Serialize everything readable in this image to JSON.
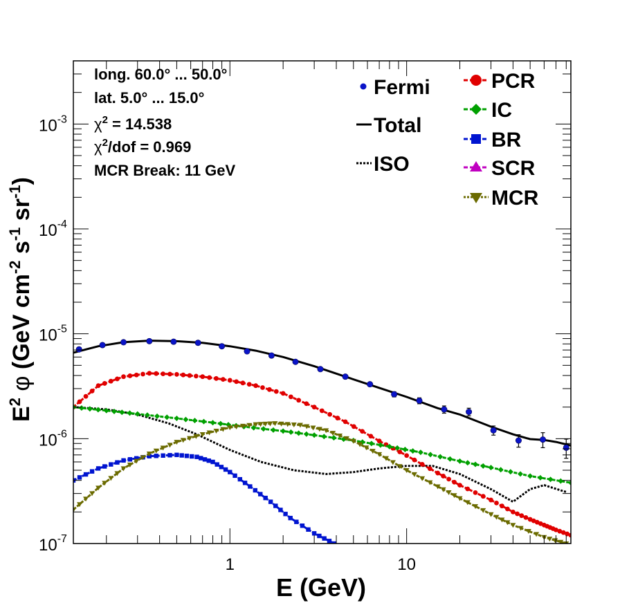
{
  "chart_data": {
    "type": "line",
    "title": "",
    "xlabel": "E (GeV)",
    "ylabel_parts": {
      "e": "E",
      "e_exp": "2",
      "phi": "φ",
      "unit": "(GeV cm",
      "cm_exp": "-2",
      "s": "s",
      "s_exp": "-1",
      "sr": "sr",
      "sr_exp": "-1",
      "close": ")"
    },
    "xscale": "log",
    "yscale": "log",
    "xlim": [
      0.13,
      85
    ],
    "ylim": [
      1e-07,
      0.004
    ],
    "x_tick_labels": [
      {
        "x": 1,
        "label": "1"
      },
      {
        "x": 10,
        "label": "10"
      }
    ],
    "y_tick_labels": [
      {
        "y": 1e-07,
        "base": "10",
        "exp": "-7"
      },
      {
        "y": 1e-06,
        "base": "10",
        "exp": "-6"
      },
      {
        "y": 1e-05,
        "base": "10",
        "exp": "-5"
      },
      {
        "y": 0.0001,
        "base": "10",
        "exp": "-4"
      },
      {
        "y": 0.001,
        "base": "10",
        "exp": "-3"
      }
    ],
    "info_lines": [
      {
        "text": "long. 60.0° ... 50.0°"
      },
      {
        "text": "lat. 5.0° ... 15.0°"
      },
      {
        "pre": "χ",
        "sup": "2",
        "post": " = 14.538"
      },
      {
        "pre": "χ",
        "sup": "2",
        "post": "/dof = 0.969"
      },
      {
        "text": "MCR Break: 11 GeV"
      }
    ],
    "legend": {
      "left": [
        {
          "label": "Fermi",
          "style": "marker",
          "color": "#0a14c8"
        },
        {
          "label": "Total",
          "style": "solid",
          "color": "#000000"
        },
        {
          "label": "ISO",
          "style": "dotted",
          "color": "#000000"
        }
      ],
      "right": [
        {
          "label": "PCR",
          "color": "#e00000",
          "marker": "circle"
        },
        {
          "label": "IC",
          "color": "#00a000",
          "marker": "diamond"
        },
        {
          "label": "BR",
          "color": "#0014d0",
          "marker": "square"
        },
        {
          "label": "SCR",
          "color": "#c000c0",
          "marker": "triangle-up"
        },
        {
          "label": "MCR",
          "color": "#6b6b00",
          "marker": "triangle-down"
        }
      ]
    },
    "fermi": {
      "x": [
        0.14,
        0.19,
        0.25,
        0.35,
        0.48,
        0.66,
        0.9,
        1.25,
        1.72,
        2.35,
        3.25,
        4.5,
        6.2,
        8.5,
        11.8,
        16.3,
        22.5,
        31,
        43,
        59,
        80
      ],
      "y": [
        7.1e-06,
        7.8e-06,
        8.3e-06,
        8.5e-06,
        8.4e-06,
        8.2e-06,
        7.6e-06,
        6.8e-06,
        6.2e-06,
        5.4e-06,
        4.6e-06,
        3.9e-06,
        3.3e-06,
        2.65e-06,
        2.3e-06,
        1.9e-06,
        1.8e-06,
        1.2e-06,
        9.6e-07,
        9.8e-07,
        8.2e-07
      ],
      "yerr": [
        0,
        0,
        0,
        0,
        0,
        0,
        0,
        0,
        0,
        0,
        0,
        0,
        0,
        1.5e-07,
        1.5e-07,
        1.5e-07,
        1.5e-07,
        1.2e-07,
        1.3e-07,
        1.6e-07,
        1.7e-07
      ]
    },
    "series": [
      {
        "name": "Total",
        "color": "#000000",
        "style": "solid",
        "x": [
          0.13,
          0.18,
          0.25,
          0.35,
          0.5,
          0.7,
          1.0,
          1.4,
          2.0,
          3.0,
          4.5,
          7,
          10,
          15,
          20,
          30,
          40,
          50,
          60,
          70,
          85
        ],
        "y": [
          6.6e-06,
          7.6e-06,
          8.3e-06,
          8.6e-06,
          8.5e-06,
          8.2e-06,
          7.6e-06,
          6.9e-06,
          6e-06,
          4.9e-06,
          3.9e-06,
          3.05e-06,
          2.5e-06,
          1.95e-06,
          1.7e-06,
          1.3e-06,
          1.1e-06,
          9.9e-07,
          9.7e-07,
          9.3e-07,
          8.6e-07
        ]
      },
      {
        "name": "ISO",
        "color": "#000000",
        "style": "dotted",
        "x": [
          0.13,
          0.2,
          0.3,
          0.45,
          0.65,
          1.0,
          1.5,
          2.3,
          3.5,
          5,
          7,
          10,
          14,
          20,
          30,
          40,
          50,
          60,
          80
        ],
        "y": [
          2e-06,
          1.9e-06,
          1.7e-06,
          1.4e-06,
          1.1e-06,
          7.8e-07,
          6e-07,
          5e-07,
          4.6e-07,
          4.8e-07,
          5.2e-07,
          5.5e-07,
          5.5e-07,
          4.6e-07,
          3.3e-07,
          2.5e-07,
          3.3e-07,
          3.6e-07,
          3.1e-07
        ]
      },
      {
        "name": "PCR",
        "color": "#e00000",
        "style": "dashed",
        "marker": "circle",
        "x": [
          0.13,
          0.18,
          0.25,
          0.35,
          0.5,
          0.7,
          1.0,
          1.4,
          2.0,
          3.0,
          4.5,
          7,
          10,
          15,
          20,
          30,
          40,
          50,
          60,
          70,
          85
        ],
        "y": [
          2e-06,
          3.2e-06,
          3.9e-06,
          4.2e-06,
          4.1e-06,
          3.9e-06,
          3.6e-06,
          3.2e-06,
          2.7e-06,
          2e-06,
          1.45e-06,
          9.5e-07,
          6.9e-07,
          4.7e-07,
          3.6e-07,
          2.6e-07,
          2e-07,
          1.7e-07,
          1.5e-07,
          1.35e-07,
          1.2e-07
        ]
      },
      {
        "name": "IC",
        "color": "#00a000",
        "style": "dashed",
        "marker": "diamond",
        "x": [
          0.13,
          0.2,
          0.3,
          0.5,
          0.8,
          1.2,
          2.0,
          3.0,
          5.0,
          8.0,
          12,
          20,
          30,
          50,
          85
        ],
        "y": [
          2e-06,
          1.85e-06,
          1.72e-06,
          1.56e-06,
          1.42e-06,
          1.3e-06,
          1.18e-06,
          1.08e-06,
          9.6e-07,
          8.4e-07,
          7.4e-07,
          6.1e-07,
          5.3e-07,
          4.4e-07,
          3.8e-07
        ]
      },
      {
        "name": "BR",
        "color": "#0014d0",
        "style": "dashed",
        "marker": "square",
        "x": [
          0.13,
          0.18,
          0.25,
          0.35,
          0.5,
          0.65,
          0.8,
          1.0,
          1.3,
          1.7,
          2.2,
          3.0,
          3.9
        ],
        "y": [
          4e-07,
          5.2e-07,
          6.2e-07,
          6.8e-07,
          7e-07,
          6.7e-07,
          6e-07,
          4.8e-07,
          3.5e-07,
          2.5e-07,
          1.75e-07,
          1.25e-07,
          1e-07
        ]
      },
      {
        "name": "MCR",
        "color": "#6b6b00",
        "style": "dashed",
        "marker": "triangle-down",
        "x": [
          0.13,
          0.18,
          0.25,
          0.35,
          0.5,
          0.7,
          1.0,
          1.4,
          1.8,
          2.5,
          3.5,
          5,
          7,
          10,
          15,
          20,
          30,
          40,
          60,
          80
        ],
        "y": [
          2.1e-07,
          3.4e-07,
          5.2e-07,
          7.2e-07,
          9.3e-07,
          1.1e-06,
          1.28e-06,
          1.37e-06,
          1.4e-06,
          1.35e-06,
          1.2e-06,
          9.5e-07,
          7.1e-07,
          5e-07,
          3.5e-07,
          2.7e-07,
          1.9e-07,
          1.5e-07,
          1.15e-07,
          1e-07
        ]
      }
    ]
  }
}
